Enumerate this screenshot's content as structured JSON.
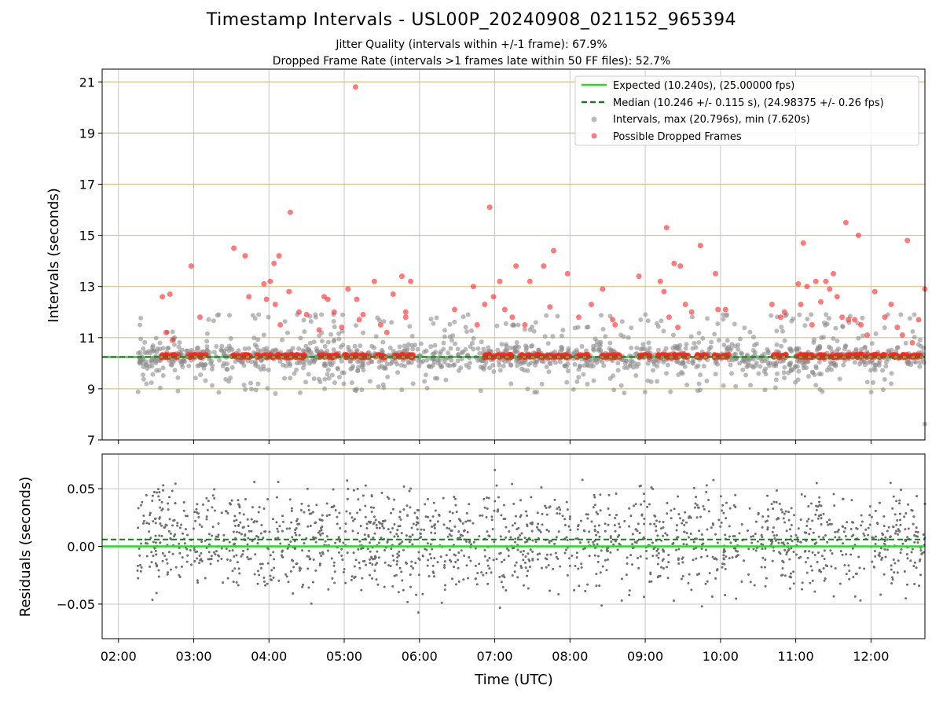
{
  "title": "Timestamp Intervals - USL00P_20240908_021152_965394",
  "subtitles": [
    "Jitter Quality (intervals within +/-1 frame): 67.9%",
    "Dropped Frame Rate (intervals >1 frames late within 50 FF files): 52.7%"
  ],
  "colors": {
    "expected": "#22dd22",
    "median": "#1a7a1a",
    "intervals": "#8c8c8c",
    "dropped": "#ff2222",
    "residuals": "#6e6e6e",
    "hgrid_top": "#d4bf85",
    "grid": "#c8c8c8"
  },
  "chart_data": [
    {
      "type": "scatter",
      "panel": "top",
      "ylabel": "Intervals (seconds)",
      "xlabel": "",
      "xlim": [
        "01:47",
        "12:43"
      ],
      "ylim": [
        7,
        21.5
      ],
      "yticks": [
        7,
        9,
        11,
        13,
        15,
        17,
        19,
        21
      ],
      "grid": true,
      "legend": {
        "placement": "top-right",
        "entries": [
          "Expected (10.240s), (25.00000 fps)",
          "Median (10.246 +/- 0.115 s), (24.98375 +/- 0.26 fps)",
          "Intervals, max (20.796s), min (7.620s)",
          "Possible Dropped Frames"
        ]
      },
      "lines": [
        {
          "name": "Expected (10.240s), (25.00000 fps)",
          "y": 10.24,
          "style": "solid"
        },
        {
          "name": "Median (10.246 +/- 0.115 s), (24.98375 +/- 0.26 fps)",
          "y": 10.246,
          "style": "dashed"
        }
      ],
      "series": [
        {
          "name": "Intervals, max (20.796s), min (7.620s)",
          "time_range": [
            "02:15",
            "12:43"
          ],
          "baseline": 10.24,
          "min": 7.62,
          "max": 20.796
        },
        {
          "name": "Possible Dropped Frames",
          "baseline": 10.28,
          "outliers": [
            {
              "t": "02:35",
              "y": 12.6
            },
            {
              "t": "02:41",
              "y": 12.7
            },
            {
              "t": "02:38",
              "y": 11.2
            },
            {
              "t": "02:43",
              "y": 10.9
            },
            {
              "t": "02:58",
              "y": 13.8
            },
            {
              "t": "03:05",
              "y": 11.8
            },
            {
              "t": "03:32",
              "y": 14.5
            },
            {
              "t": "03:41",
              "y": 14.2
            },
            {
              "t": "03:44",
              "y": 12.6
            },
            {
              "t": "03:56",
              "y": 13.1
            },
            {
              "t": "03:58",
              "y": 12.5
            },
            {
              "t": "04:01",
              "y": 13.2
            },
            {
              "t": "04:04",
              "y": 13.9
            },
            {
              "t": "04:08",
              "y": 14.2
            },
            {
              "t": "04:05",
              "y": 12.3
            },
            {
              "t": "04:09",
              "y": 11.5
            },
            {
              "t": "04:16",
              "y": 12.8
            },
            {
              "t": "04:17",
              "y": 15.9
            },
            {
              "t": "04:24",
              "y": 12.0
            },
            {
              "t": "04:30",
              "y": 11.9
            },
            {
              "t": "04:40",
              "y": 11.3
            },
            {
              "t": "04:44",
              "y": 12.6
            },
            {
              "t": "04:47",
              "y": 12.5
            },
            {
              "t": "04:52",
              "y": 12.0
            },
            {
              "t": "04:58",
              "y": 11.4
            },
            {
              "t": "05:03",
              "y": 12.9
            },
            {
              "t": "05:10",
              "y": 12.5
            },
            {
              "t": "05:12",
              "y": 11.7
            },
            {
              "t": "05:15",
              "y": 11.9
            },
            {
              "t": "05:09",
              "y": 20.8
            },
            {
              "t": "05:24",
              "y": 13.2
            },
            {
              "t": "05:29",
              "y": 11.5
            },
            {
              "t": "05:34",
              "y": 11.2
            },
            {
              "t": "05:39",
              "y": 12.7
            },
            {
              "t": "05:46",
              "y": 13.4
            },
            {
              "t": "05:49",
              "y": 12.0
            },
            {
              "t": "05:49",
              "y": 11.8
            },
            {
              "t": "05:53",
              "y": 13.2
            },
            {
              "t": "06:28",
              "y": 12.1
            },
            {
              "t": "06:43",
              "y": 13.0
            },
            {
              "t": "06:46",
              "y": 11.5
            },
            {
              "t": "06:52",
              "y": 12.3
            },
            {
              "t": "06:56",
              "y": 16.1
            },
            {
              "t": "06:59",
              "y": 12.6
            },
            {
              "t": "07:04",
              "y": 13.2
            },
            {
              "t": "07:08",
              "y": 12.1
            },
            {
              "t": "07:14",
              "y": 11.8
            },
            {
              "t": "07:17",
              "y": 13.8
            },
            {
              "t": "07:24",
              "y": 11.5
            },
            {
              "t": "07:28",
              "y": 13.2
            },
            {
              "t": "07:39",
              "y": 13.8
            },
            {
              "t": "07:44",
              "y": 12.2
            },
            {
              "t": "07:47",
              "y": 14.4
            },
            {
              "t": "07:58",
              "y": 13.5
            },
            {
              "t": "08:07",
              "y": 11.8
            },
            {
              "t": "08:17",
              "y": 12.3
            },
            {
              "t": "08:26",
              "y": 12.9
            },
            {
              "t": "08:34",
              "y": 11.7
            },
            {
              "t": "08:36",
              "y": 11.5
            },
            {
              "t": "08:55",
              "y": 13.4
            },
            {
              "t": "09:12",
              "y": 13.2
            },
            {
              "t": "09:15",
              "y": 12.8
            },
            {
              "t": "09:17",
              "y": 15.3
            },
            {
              "t": "09:19",
              "y": 11.8
            },
            {
              "t": "09:23",
              "y": 13.9
            },
            {
              "t": "09:26",
              "y": 11.4
            },
            {
              "t": "09:28",
              "y": 13.8
            },
            {
              "t": "09:32",
              "y": 12.3
            },
            {
              "t": "09:37",
              "y": 12.0
            },
            {
              "t": "09:44",
              "y": 14.6
            },
            {
              "t": "09:56",
              "y": 13.5
            },
            {
              "t": "09:58",
              "y": 12.1
            },
            {
              "t": "10:04",
              "y": 12.1
            },
            {
              "t": "10:41",
              "y": 12.3
            },
            {
              "t": "10:48",
              "y": 11.8
            },
            {
              "t": "10:51",
              "y": 12.0
            },
            {
              "t": "11:02",
              "y": 13.1
            },
            {
              "t": "11:04",
              "y": 12.3
            },
            {
              "t": "11:06",
              "y": 14.7
            },
            {
              "t": "11:09",
              "y": 13.0
            },
            {
              "t": "11:13",
              "y": 11.5
            },
            {
              "t": "11:16",
              "y": 13.2
            },
            {
              "t": "11:20",
              "y": 12.4
            },
            {
              "t": "11:24",
              "y": 13.2
            },
            {
              "t": "11:27",
              "y": 12.9
            },
            {
              "t": "11:30",
              "y": 13.5
            },
            {
              "t": "11:33",
              "y": 12.6
            },
            {
              "t": "11:37",
              "y": 11.8
            },
            {
              "t": "11:40",
              "y": 15.5
            },
            {
              "t": "11:42",
              "y": 11.7
            },
            {
              "t": "11:47",
              "y": 11.7
            },
            {
              "t": "11:50",
              "y": 15.0
            },
            {
              "t": "11:52",
              "y": 11.5
            },
            {
              "t": "11:57",
              "y": 11.1
            },
            {
              "t": "12:03",
              "y": 12.8
            },
            {
              "t": "12:11",
              "y": 11.8
            },
            {
              "t": "12:16",
              "y": 12.3
            },
            {
              "t": "12:21",
              "y": 11.4
            },
            {
              "t": "12:25",
              "y": 11.1
            },
            {
              "t": "12:29",
              "y": 14.8
            },
            {
              "t": "12:33",
              "y": 10.8
            },
            {
              "t": "12:38",
              "y": 11.7
            },
            {
              "t": "12:43",
              "y": 12.9
            }
          ]
        }
      ]
    },
    {
      "type": "scatter",
      "panel": "bottom",
      "ylabel": "Residuals (seconds)",
      "xlabel": "Time (UTC)",
      "xlim": [
        "01:47",
        "12:43"
      ],
      "ylim": [
        -0.08,
        0.08
      ],
      "yticks": [
        -0.05,
        0.0,
        0.05
      ],
      "ytick_labels": [
        "−0.05",
        "0.00",
        "0.05"
      ],
      "xtick_labels": [
        "02:00",
        "03:00",
        "04:00",
        "05:00",
        "06:00",
        "07:00",
        "08:00",
        "09:00",
        "10:00",
        "11:00",
        "12:00"
      ],
      "grid": true,
      "lines": [
        {
          "y": 0.0,
          "style": "solid"
        },
        {
          "y": 0.006,
          "style": "dashed"
        }
      ],
      "series": [
        {
          "name": "",
          "time_range": [
            "02:15",
            "12:43"
          ],
          "center": 0.006,
          "range": [
            -0.08,
            0.08
          ]
        }
      ]
    }
  ]
}
